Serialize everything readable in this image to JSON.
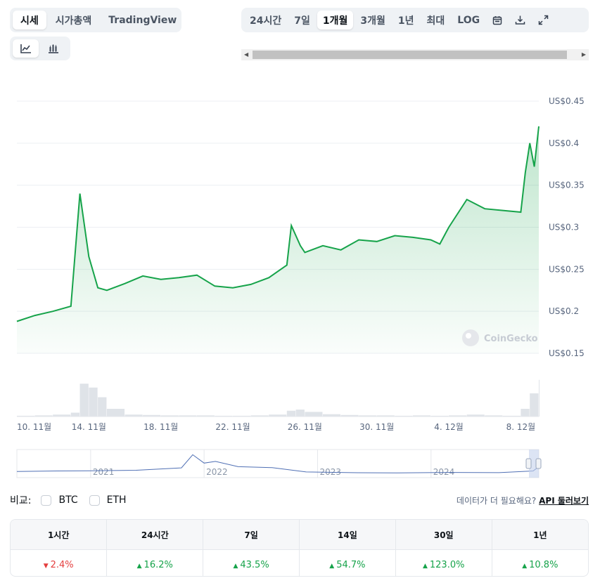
{
  "tabs": {
    "type": [
      "시세",
      "시가총액",
      "TradingView"
    ],
    "type_active": 0,
    "range": [
      "24시간",
      "7일",
      "1개월",
      "3개월",
      "1년",
      "최대",
      "LOG"
    ],
    "range_active": 2
  },
  "icons": [
    "line-chart-icon",
    "candlestick-icon",
    "calendar-icon",
    "download-icon",
    "fullscreen-icon"
  ],
  "colors": {
    "line": "#16a34a",
    "down": "#e43e3e",
    "up": "#16a34a",
    "navigator": "#4f6fb4"
  },
  "chart_data": {
    "type": "area",
    "y_labels": [
      "US$0.45",
      "US$0.4",
      "US$0.35",
      "US$0.3",
      "US$0.25",
      "US$0.2",
      "US$0.15"
    ],
    "ylim": [
      0.15,
      0.45
    ],
    "x_labels": [
      "10. 11월",
      "14. 11월",
      "18. 11월",
      "22. 11월",
      "26. 11월",
      "30. 11월",
      "4. 12월",
      "8. 12월"
    ],
    "xlim": [
      "2024-11-10",
      "2024-12-09"
    ],
    "grid": true,
    "watermark": "CoinGecko",
    "series": [
      {
        "points": [
          [
            "2024-11-10",
            0.188
          ],
          [
            "2024-11-11",
            0.195
          ],
          [
            "2024-11-12",
            0.2
          ],
          [
            "2024-11-13",
            0.206
          ],
          [
            "2024-11-13T12",
            0.34
          ],
          [
            "2024-11-14",
            0.265
          ],
          [
            "2024-11-14T12",
            0.228
          ],
          [
            "2024-11-15",
            0.225
          ],
          [
            "2024-11-16",
            0.233
          ],
          [
            "2024-11-17",
            0.242
          ],
          [
            "2024-11-18",
            0.238
          ],
          [
            "2024-11-19",
            0.24
          ],
          [
            "2024-11-20",
            0.243
          ],
          [
            "2024-11-21",
            0.23
          ],
          [
            "2024-11-22",
            0.228
          ],
          [
            "2024-11-23",
            0.232
          ],
          [
            "2024-11-24",
            0.24
          ],
          [
            "2024-11-25",
            0.255
          ],
          [
            "2024-11-25T06",
            0.302
          ],
          [
            "2024-11-25T18",
            0.278
          ],
          [
            "2024-11-26",
            0.27
          ],
          [
            "2024-11-27",
            0.278
          ],
          [
            "2024-11-28",
            0.273
          ],
          [
            "2024-11-29",
            0.285
          ],
          [
            "2024-11-30",
            0.283
          ],
          [
            "2024-12-01",
            0.29
          ],
          [
            "2024-12-02",
            0.288
          ],
          [
            "2024-12-03",
            0.285
          ],
          [
            "2024-12-03T12",
            0.28
          ],
          [
            "2024-12-04",
            0.3
          ],
          [
            "2024-12-05",
            0.333
          ],
          [
            "2024-12-06",
            0.322
          ],
          [
            "2024-12-07",
            0.32
          ],
          [
            "2024-12-08",
            0.318
          ],
          [
            "2024-12-08T06",
            0.365
          ],
          [
            "2024-12-08T12",
            0.4
          ],
          [
            "2024-12-08T18",
            0.372
          ],
          [
            "2024-12-09",
            0.42
          ]
        ]
      }
    ],
    "volume": [
      [
        "2024-11-10",
        0.02
      ],
      [
        "2024-11-11",
        0.03
      ],
      [
        "2024-11-12",
        0.05
      ],
      [
        "2024-11-13",
        0.1
      ],
      [
        "2024-11-13T12",
        0.85
      ],
      [
        "2024-11-14",
        0.75
      ],
      [
        "2024-11-14T12",
        0.5
      ],
      [
        "2024-11-15",
        0.2
      ],
      [
        "2024-11-16",
        0.05
      ],
      [
        "2024-11-17",
        0.04
      ],
      [
        "2024-11-18",
        0.03
      ],
      [
        "2024-11-19",
        0.03
      ],
      [
        "2024-11-20",
        0.03
      ],
      [
        "2024-11-21",
        0.02
      ],
      [
        "2024-11-22",
        0.02
      ],
      [
        "2024-11-23",
        0.03
      ],
      [
        "2024-11-24",
        0.05
      ],
      [
        "2024-11-25",
        0.15
      ],
      [
        "2024-11-25T12",
        0.18
      ],
      [
        "2024-11-26",
        0.12
      ],
      [
        "2024-11-27",
        0.06
      ],
      [
        "2024-11-28",
        0.04
      ],
      [
        "2024-11-29",
        0.03
      ],
      [
        "2024-11-30",
        0.03
      ],
      [
        "2024-12-01",
        0.02
      ],
      [
        "2024-12-02",
        0.03
      ],
      [
        "2024-12-03",
        0.02
      ],
      [
        "2024-12-04",
        0.03
      ],
      [
        "2024-12-05",
        0.05
      ],
      [
        "2024-12-06",
        0.03
      ],
      [
        "2024-12-07",
        0.02
      ],
      [
        "2024-12-08",
        0.2
      ],
      [
        "2024-12-08T12",
        0.6
      ],
      [
        "2024-12-09",
        0.95
      ]
    ],
    "navigator": {
      "labels": [
        "2021",
        "2022",
        "2023",
        "2024"
      ],
      "points": [
        [
          2020.35,
          0.2
        ],
        [
          2020.7,
          0.22
        ],
        [
          2021.0,
          0.23
        ],
        [
          2021.4,
          0.25
        ],
        [
          2021.8,
          0.35
        ],
        [
          2021.9,
          0.9
        ],
        [
          2022.0,
          0.55
        ],
        [
          2022.1,
          0.62
        ],
        [
          2022.3,
          0.4
        ],
        [
          2022.6,
          0.36
        ],
        [
          2022.9,
          0.18
        ],
        [
          2023.3,
          0.15
        ],
        [
          2023.7,
          0.14
        ],
        [
          2024.2,
          0.16
        ],
        [
          2024.6,
          0.15
        ],
        [
          2024.9,
          0.22
        ],
        [
          2024.95,
          0.4
        ]
      ]
    }
  },
  "compare": {
    "label": "비교:",
    "options": [
      "BTC",
      "ETH"
    ]
  },
  "more_data": {
    "text": "데이터가 더 필요해요?",
    "link": "API 둘러보기"
  },
  "performance": {
    "headers": [
      "1시간",
      "24시간",
      "7일",
      "14일",
      "30일",
      "1년"
    ],
    "values": [
      {
        "text": "2.4%",
        "dir": "down"
      },
      {
        "text": "16.2%",
        "dir": "up"
      },
      {
        "text": "43.5%",
        "dir": "up"
      },
      {
        "text": "54.7%",
        "dir": "up"
      },
      {
        "text": "123.0%",
        "dir": "up"
      },
      {
        "text": "10.8%",
        "dir": "up"
      }
    ]
  }
}
